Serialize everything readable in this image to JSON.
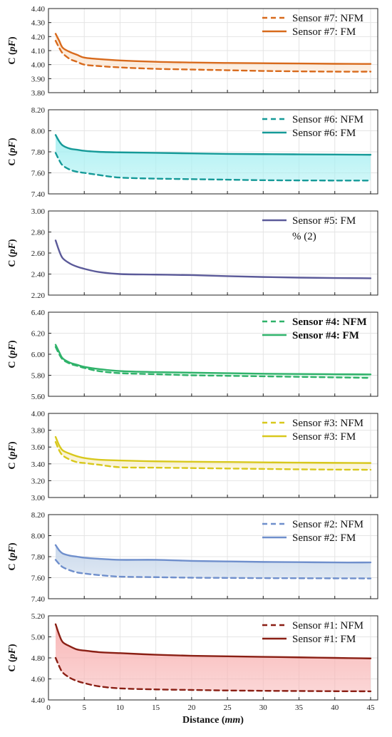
{
  "chart_data": [
    {
      "type": "line",
      "ylabel": "C (pF)",
      "ylim": [
        3.8,
        4.4
      ],
      "yticks": [
        "3.80",
        "3.90",
        "4.00",
        "4.10",
        "4.20",
        "4.30",
        "4.40"
      ],
      "xlim": [
        0,
        46
      ],
      "fill_color": "#fbe3cc",
      "series": [
        {
          "name": "Sensor #7: NFM",
          "dash": true,
          "color": "#d86a1c",
          "x": [
            1,
            1.5,
            2,
            3,
            4,
            5,
            7,
            10,
            15,
            20,
            25,
            30,
            35,
            40,
            45
          ],
          "y": [
            4.17,
            4.12,
            4.08,
            4.04,
            4.02,
            4.0,
            3.99,
            3.98,
            3.97,
            3.965,
            3.96,
            3.955,
            3.952,
            3.95,
            3.95
          ]
        },
        {
          "name": "Sensor #7: FM",
          "dash": false,
          "color": "#d86a1c",
          "x": [
            1,
            1.5,
            2,
            3,
            4,
            5,
            7,
            10,
            15,
            20,
            25,
            30,
            35,
            40,
            45
          ],
          "y": [
            4.22,
            4.17,
            4.12,
            4.09,
            4.07,
            4.05,
            4.04,
            4.03,
            4.02,
            4.015,
            4.012,
            4.01,
            4.008,
            4.006,
            4.005
          ]
        }
      ]
    },
    {
      "type": "line",
      "ylabel": "C (pF)",
      "ylim": [
        7.4,
        8.2
      ],
      "yticks": [
        "7.40",
        "7.60",
        "7.80",
        "8.00",
        "8.20"
      ],
      "xlim": [
        0,
        46
      ],
      "fill_color": "#a8f0f2",
      "series": [
        {
          "name": "Sensor #6: NFM",
          "dash": true,
          "color": "#159a98",
          "x": [
            1,
            1.5,
            2,
            3,
            4,
            5,
            7,
            10,
            15,
            20,
            25,
            30,
            35,
            40,
            45
          ],
          "y": [
            7.79,
            7.72,
            7.67,
            7.63,
            7.61,
            7.6,
            7.58,
            7.555,
            7.545,
            7.54,
            7.535,
            7.53,
            7.528,
            7.527,
            7.527
          ]
        },
        {
          "name": "Sensor #6: FM",
          "dash": false,
          "color": "#159a98",
          "x": [
            1,
            1.5,
            2,
            3,
            4,
            5,
            7,
            10,
            15,
            20,
            25,
            30,
            35,
            40,
            45
          ],
          "y": [
            7.96,
            7.9,
            7.86,
            7.83,
            7.82,
            7.81,
            7.8,
            7.795,
            7.79,
            7.785,
            7.78,
            7.778,
            7.776,
            7.774,
            7.772
          ]
        }
      ]
    },
    {
      "type": "line",
      "ylabel": "C (pF)",
      "ylim": [
        2.2,
        3.0
      ],
      "yticks": [
        "2.20",
        "2.40",
        "2.60",
        "2.80",
        "3.00"
      ],
      "xlim": [
        0,
        46
      ],
      "fill_color": "",
      "legend_extra": "% (2)",
      "series": [
        {
          "name": "Sensor #5: FM",
          "dash": false,
          "color": "#5b5a99",
          "x": [
            1,
            1.5,
            2,
            3,
            4,
            5,
            7,
            10,
            15,
            20,
            25,
            30,
            35,
            40,
            45
          ],
          "y": [
            2.72,
            2.62,
            2.55,
            2.5,
            2.47,
            2.45,
            2.42,
            2.4,
            2.395,
            2.39,
            2.38,
            2.372,
            2.366,
            2.362,
            2.36
          ]
        }
      ]
    },
    {
      "type": "line",
      "ylabel": "C (pF)",
      "ylim": [
        5.6,
        6.4
      ],
      "yticks": [
        "5.60",
        "5.80",
        "6.00",
        "6.20",
        "6.40"
      ],
      "xlim": [
        0,
        46
      ],
      "fill_color": "#c9f3dc",
      "bold_legend": true,
      "series": [
        {
          "name": "Sensor #4: NFM",
          "dash": true,
          "color": "#2fb26a",
          "x": [
            1,
            1.5,
            2,
            3,
            4,
            5,
            7,
            10,
            15,
            20,
            25,
            30,
            35,
            40,
            45
          ],
          "y": [
            6.07,
            6.0,
            5.95,
            5.91,
            5.89,
            5.87,
            5.84,
            5.82,
            5.81,
            5.8,
            5.795,
            5.79,
            5.785,
            5.78,
            5.775
          ]
        },
        {
          "name": "Sensor #4: FM",
          "dash": false,
          "color": "#2fb26a",
          "x": [
            1,
            1.5,
            2,
            3,
            4,
            5,
            7,
            10,
            15,
            20,
            25,
            30,
            35,
            40,
            45
          ],
          "y": [
            6.09,
            6.02,
            5.96,
            5.92,
            5.9,
            5.88,
            5.86,
            5.84,
            5.83,
            5.825,
            5.82,
            5.815,
            5.812,
            5.81,
            5.808
          ]
        }
      ]
    },
    {
      "type": "line",
      "ylabel": "C (pF)",
      "ylim": [
        3.0,
        4.0
      ],
      "yticks": [
        "3.00",
        "3.20",
        "3.40",
        "3.60",
        "3.80",
        "4.00"
      ],
      "xlim": [
        0,
        46
      ],
      "fill_color": "#f8eec4",
      "series": [
        {
          "name": "Sensor #3: NFM",
          "dash": true,
          "color": "#d8c81c",
          "x": [
            1,
            1.5,
            2,
            3,
            4,
            5,
            7,
            10,
            15,
            20,
            25,
            30,
            35,
            40,
            45
          ],
          "y": [
            3.66,
            3.56,
            3.5,
            3.45,
            3.42,
            3.41,
            3.39,
            3.36,
            3.355,
            3.35,
            3.345,
            3.34,
            3.335,
            3.332,
            3.33
          ]
        },
        {
          "name": "Sensor #3: FM",
          "dash": false,
          "color": "#d8c81c",
          "x": [
            1,
            1.5,
            2,
            3,
            4,
            5,
            7,
            10,
            15,
            20,
            25,
            30,
            35,
            40,
            45
          ],
          "y": [
            3.72,
            3.62,
            3.56,
            3.52,
            3.49,
            3.47,
            3.45,
            3.44,
            3.43,
            3.425,
            3.422,
            3.418,
            3.415,
            3.412,
            3.41
          ]
        }
      ]
    },
    {
      "type": "line",
      "ylabel": "C (pF)",
      "ylim": [
        7.4,
        8.2
      ],
      "yticks": [
        "7.40",
        "7.60",
        "7.80",
        "8.00",
        "8.20"
      ],
      "xlim": [
        0,
        46
      ],
      "fill_color": "#c6d6ea",
      "series": [
        {
          "name": "Sensor #2: NFM",
          "dash": true,
          "color": "#6f8fcc",
          "x": [
            1,
            1.5,
            2,
            3,
            4,
            5,
            7,
            10,
            15,
            20,
            25,
            30,
            35,
            40,
            45
          ],
          "y": [
            7.77,
            7.73,
            7.7,
            7.67,
            7.65,
            7.64,
            7.625,
            7.61,
            7.605,
            7.6,
            7.598,
            7.596,
            7.595,
            7.594,
            7.593
          ]
        },
        {
          "name": "Sensor #2: FM",
          "dash": false,
          "color": "#6f8fcc",
          "x": [
            1,
            1.5,
            2,
            3,
            4,
            5,
            7,
            10,
            15,
            20,
            25,
            30,
            35,
            40,
            45
          ],
          "y": [
            7.91,
            7.86,
            7.83,
            7.81,
            7.8,
            7.79,
            7.78,
            7.77,
            7.77,
            7.76,
            7.755,
            7.75,
            7.748,
            7.745,
            7.745
          ]
        }
      ]
    },
    {
      "type": "line",
      "ylabel": "C (pF)",
      "xlabel": "Distance (mm)",
      "ylim": [
        4.4,
        5.2
      ],
      "yticks": [
        "4.40",
        "4.60",
        "4.80",
        "5.00",
        "5.20"
      ],
      "xticks": [
        "0",
        "5",
        "10",
        "15",
        "20",
        "25",
        "30",
        "35",
        "40",
        "45"
      ],
      "xlim": [
        0,
        46
      ],
      "fill_color": "#f8b4b4",
      "series": [
        {
          "name": "Sensor #1: NFM",
          "dash": true,
          "color": "#8a1f14",
          "x": [
            1,
            1.5,
            2,
            3,
            4,
            5,
            7,
            10,
            15,
            20,
            25,
            30,
            35,
            40,
            45
          ],
          "y": [
            4.8,
            4.72,
            4.66,
            4.61,
            4.58,
            4.56,
            4.53,
            4.51,
            4.5,
            4.495,
            4.49,
            4.487,
            4.485,
            4.483,
            4.482
          ]
        },
        {
          "name": "Sensor #1: FM",
          "dash": false,
          "color": "#8a1f14",
          "x": [
            1,
            1.5,
            2,
            3,
            4,
            5,
            7,
            10,
            15,
            20,
            25,
            30,
            35,
            40,
            45
          ],
          "y": [
            5.12,
            5.02,
            4.95,
            4.91,
            4.88,
            4.87,
            4.855,
            4.845,
            4.83,
            4.82,
            4.815,
            4.81,
            4.805,
            4.8,
            4.795
          ]
        }
      ]
    }
  ]
}
